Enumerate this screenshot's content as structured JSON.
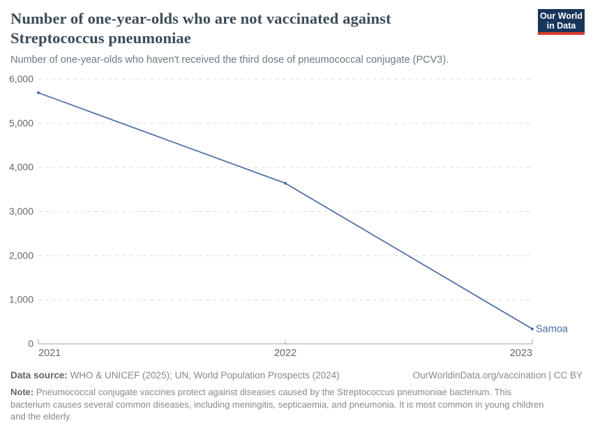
{
  "header": {
    "title_lines": [
      "Number of one-year-olds who are not vaccinated against",
      "Streptococcus pneumoniae"
    ],
    "subtitle": "Number of one-year-olds who haven't received the third dose of pneumococcal conjugate (PCV3).",
    "logo_line1": "Our World",
    "logo_line2": "in Data",
    "logo_colors": {
      "background": "#18355a",
      "stripe": "#d43b2d"
    }
  },
  "chart_data": {
    "type": "line",
    "title": "Number of one-year-olds who are not vaccinated against Streptococcus pneumoniae",
    "subtitle": "Number of one-year-olds who haven't received the third dose of pneumococcal conjugate (PCV3).",
    "x": [
      2021,
      2022,
      2023
    ],
    "xtick_labels": [
      "2021",
      "2022",
      "2023"
    ],
    "series": [
      {
        "name": "Samoa",
        "color": "#4a6ba4",
        "values": [
          5690,
          3640,
          340
        ]
      }
    ],
    "ylim": [
      0,
      6000
    ],
    "ytick_values": [
      0,
      1000,
      2000,
      3000,
      4000,
      5000,
      6000
    ],
    "ytick_labels": [
      "0",
      "1,000",
      "2,000",
      "3,000",
      "4,000",
      "5,000",
      "6,000"
    ],
    "grid": "horizontal-dashed",
    "legend": "line-end-label",
    "colors": {
      "grid": "#dcdcdc",
      "axis": "#a5a5a5",
      "tick_text": "#62676c"
    }
  },
  "footer": {
    "datasource_label": "Data source:",
    "datasource_text": "WHO & UNICEF (2025); UN, World Population Prospects (2024)",
    "link": "OurWorldinData.org/vaccination",
    "separator": " | ",
    "license": "CC BY",
    "note_label": "Note:",
    "note_text": "Pneumococcal conjugate vaccines protect against diseases caused by the Streptococcus pneumoniae bacterium. This bacterium causes several common diseases, including meningitis, septicaemia, and pneumonia. It is most common in young children and the elderly."
  }
}
